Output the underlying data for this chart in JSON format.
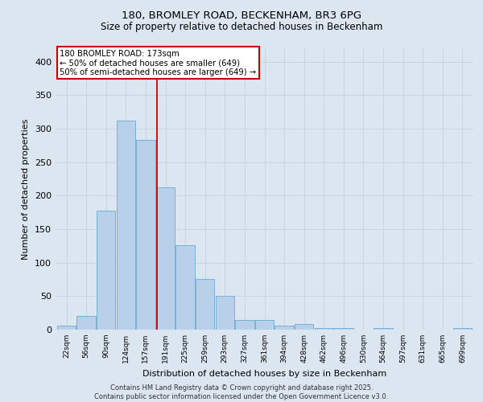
{
  "title_line1": "180, BROMLEY ROAD, BECKENHAM, BR3 6PG",
  "title_line2": "Size of property relative to detached houses in Beckenham",
  "xlabel": "Distribution of detached houses by size in Beckenham",
  "ylabel": "Number of detached properties",
  "categories": [
    "22sqm",
    "56sqm",
    "90sqm",
    "124sqm",
    "157sqm",
    "191sqm",
    "225sqm",
    "259sqm",
    "293sqm",
    "327sqm",
    "361sqm",
    "394sqm",
    "428sqm",
    "462sqm",
    "496sqm",
    "530sqm",
    "564sqm",
    "597sqm",
    "631sqm",
    "665sqm",
    "699sqm"
  ],
  "values": [
    6,
    20,
    178,
    312,
    283,
    213,
    126,
    76,
    50,
    15,
    14,
    6,
    8,
    3,
    2,
    0,
    3,
    0,
    0,
    0,
    2
  ],
  "bar_color": "#b8d0ea",
  "bar_edge_color": "#6aaad4",
  "vline_x": 4.57,
  "vline_color": "#cc0000",
  "annotation_text": "180 BROMLEY ROAD: 173sqm\n← 50% of detached houses are smaller (649)\n50% of semi-detached houses are larger (649) →",
  "annotation_box_color": "#ffffff",
  "annotation_box_edge": "#cc0000",
  "ylim": [
    0,
    420
  ],
  "yticks": [
    0,
    50,
    100,
    150,
    200,
    250,
    300,
    350,
    400
  ],
  "grid_color": "#c8d0dc",
  "background_color": "#dce6f0",
  "footer": "Contains HM Land Registry data © Crown copyright and database right 2025.\nContains public sector information licensed under the Open Government Licence v3.0."
}
